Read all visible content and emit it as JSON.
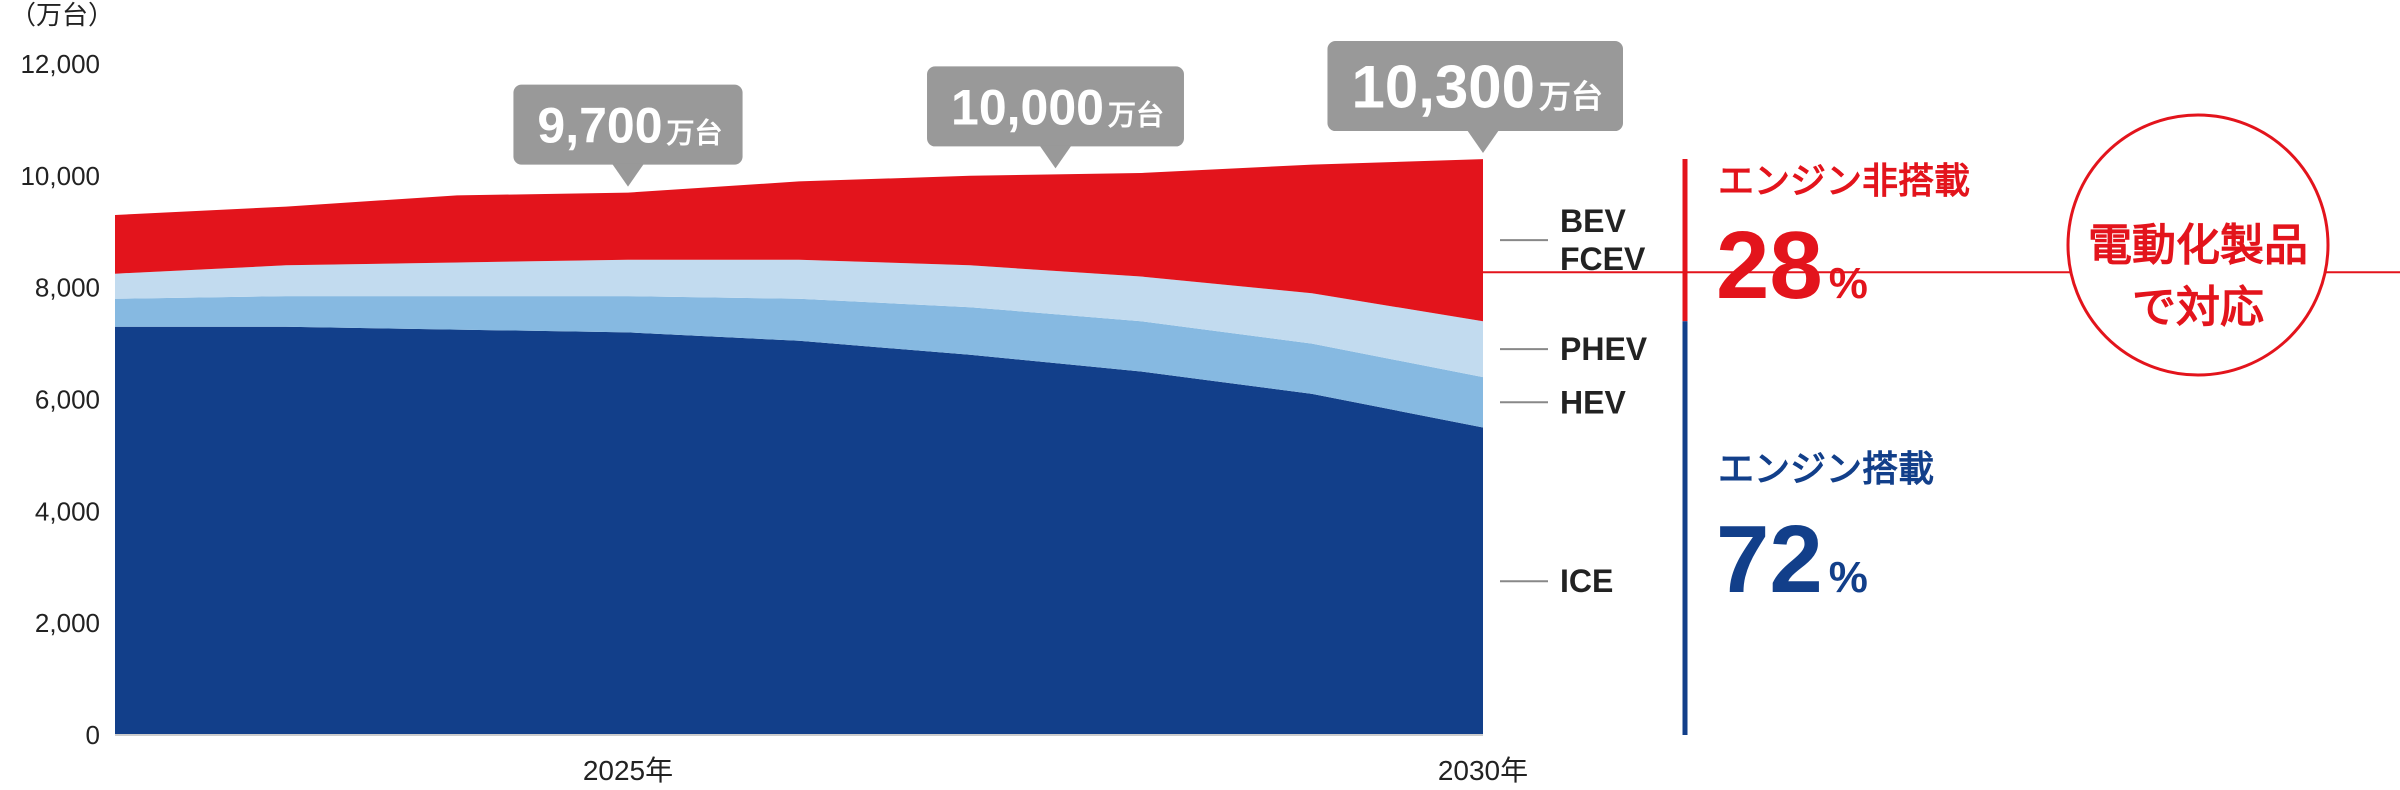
{
  "chart_data": {
    "type": "area",
    "stacked": true,
    "unit_label": "（万台）",
    "x": [
      2022,
      2023,
      2024,
      2025,
      2026,
      2027,
      2028,
      2029,
      2030
    ],
    "x_tick_labels": [
      {
        "x": 2025,
        "label": "2025年"
      },
      {
        "x": 2030,
        "label": "2030年"
      }
    ],
    "ylim": [
      0,
      12000
    ],
    "y_ticks": [
      "0",
      "2,000",
      "4,000",
      "6,000",
      "8,000",
      "10,000",
      "12,000"
    ],
    "series": [
      {
        "name": "ICE",
        "color": "#123f8a",
        "values": [
          7300,
          7300,
          7250,
          7200,
          7050,
          6800,
          6500,
          6100,
          5500
        ]
      },
      {
        "name": "HEV",
        "color": "#86b9e1",
        "values": [
          500,
          550,
          600,
          650,
          750,
          850,
          900,
          900,
          900
        ]
      },
      {
        "name": "PHEV",
        "color": "#c2dbef",
        "values": [
          450,
          550,
          600,
          650,
          700,
          750,
          800,
          900,
          1000
        ]
      },
      {
        "name": "BEV FCEV",
        "color": "#e3141c",
        "values": [
          1050,
          1050,
          1200,
          1200,
          1400,
          1600,
          1850,
          2300,
          2900
        ]
      }
    ],
    "totals_callouts": [
      {
        "x": 2025,
        "value": "9,700",
        "unit": "万台"
      },
      {
        "x": 2027.5,
        "value": "10,000",
        "unit": "万台"
      },
      {
        "x": 2030,
        "value": "10,300",
        "unit": "万台"
      }
    ],
    "series_labels": [
      {
        "series": "BEV FCEV",
        "lines": [
          "BEV",
          "FCEV"
        ]
      },
      {
        "series": "PHEV",
        "lines": [
          "PHEV"
        ]
      },
      {
        "series": "HEV",
        "lines": [
          "HEV"
        ]
      },
      {
        "series": "ICE",
        "lines": [
          "ICE"
        ]
      }
    ],
    "shares": [
      {
        "title": "エンジン非搭載",
        "percent": "28",
        "unit": "%",
        "color": "#e3141c"
      },
      {
        "title": "エンジン搭載",
        "percent": "72",
        "unit": "%",
        "color": "#123f8a"
      }
    ],
    "circle_text": [
      "電動化製品",
      "で対応"
    ],
    "colors": {
      "red": "#e3141c",
      "blue": "#123f8a",
      "callout": "#999999",
      "axis_text": "#222222"
    }
  }
}
